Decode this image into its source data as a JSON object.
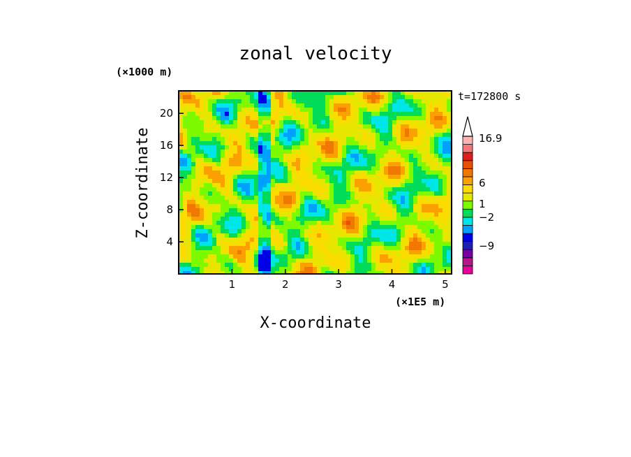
{
  "chart_data": {
    "type": "heatmap",
    "title": "zonal velocity",
    "xlabel": "X-coordinate",
    "ylabel": "Z-coordinate",
    "x_unit": "(×1E5 m)",
    "y_unit": "(×1000 m)",
    "time_label": "t=172800 s",
    "xlim": [
      0,
      5.12
    ],
    "ylim": [
      0,
      22.8
    ],
    "x_ticks": [
      "1",
      "2",
      "3",
      "4",
      "5"
    ],
    "y_ticks": [
      "4",
      "8",
      "12",
      "16",
      "20"
    ],
    "colorbar": {
      "labels": [
        "16.9",
        "6",
        "1",
        "−2",
        "−9"
      ],
      "colors": [
        "#e60099",
        "#b4148c",
        "#7800a0",
        "#1e1eb4",
        "#0000e6",
        "#00a0ff",
        "#00e6e6",
        "#00dc5a",
        "#7dfa00",
        "#e6e600",
        "#fadc00",
        "#faa000",
        "#f07800",
        "#e65000",
        "#dc1e1e",
        "#f07878",
        "#fab4b4"
      ]
    }
  }
}
